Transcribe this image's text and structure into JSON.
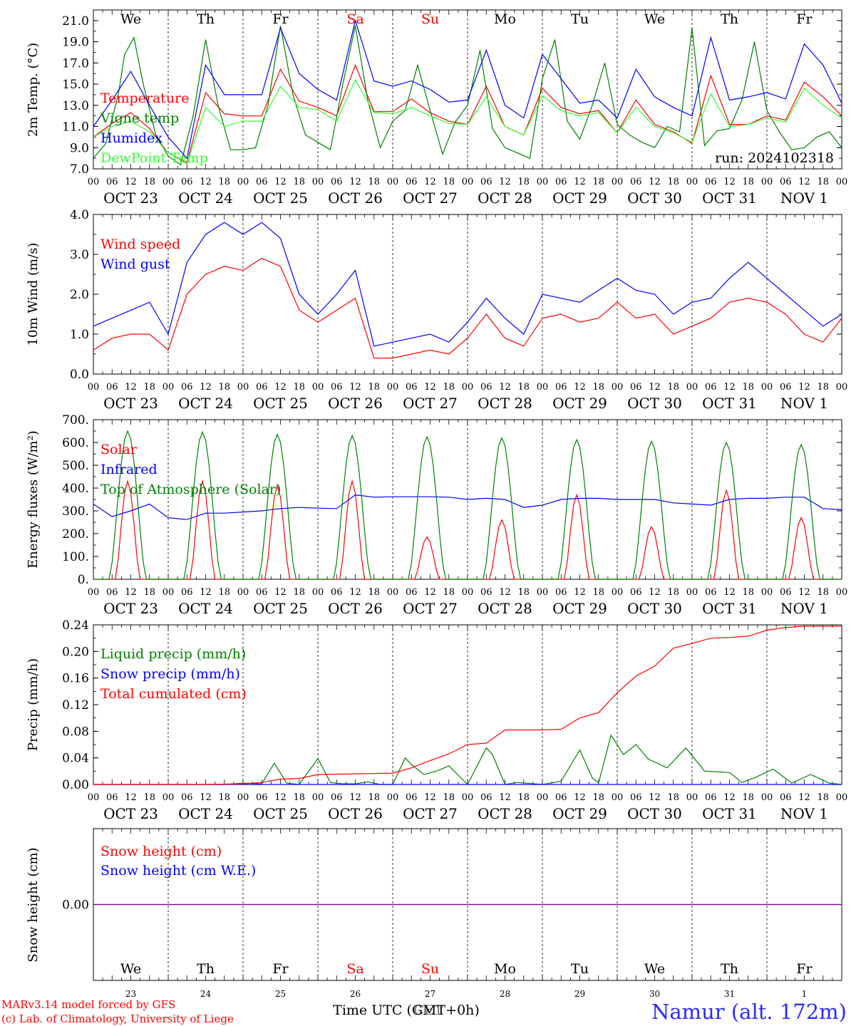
{
  "chart_data": [
    {
      "type": "line",
      "ylabel": "2m Temp. (°C)",
      "ylim": [
        7,
        22
      ],
      "yticks": [
        "7.0",
        "9.0",
        "11.0",
        "13.0",
        "15.0",
        "17.0",
        "19.0",
        "21.0"
      ],
      "day_labels": [
        "We",
        "Th",
        "Fr",
        "Sa",
        "Su",
        "Mo",
        "Tu",
        "We",
        "Th",
        "Fr"
      ],
      "run_label": "run: 2024102318",
      "series": [
        {
          "name": "Temperature",
          "color": "#ff0000",
          "x": [
            0,
            6,
            12,
            18,
            24,
            30,
            36,
            42,
            48,
            54,
            60,
            66,
            72,
            78,
            84,
            90,
            96,
            102,
            108,
            114,
            120,
            126,
            132,
            138,
            144,
            150,
            156,
            162,
            168,
            174,
            180,
            186,
            192,
            198,
            204,
            210,
            216,
            222,
            228,
            234,
            240
          ],
          "values": [
            10.0,
            11.3,
            12.3,
            10.8,
            8.5,
            7.6,
            14.2,
            12.2,
            12.0,
            12.0,
            16.4,
            13.4,
            12.8,
            12.0,
            16.8,
            12.4,
            12.4,
            13.6,
            12.3,
            11.5,
            11.2,
            14.8,
            11.0,
            10.2,
            14.6,
            12.8,
            12.2,
            12.5,
            10.4,
            13.5,
            11.2,
            10.5,
            9.4,
            15.8,
            11.2,
            11.2,
            12.0,
            11.6,
            15.2,
            13.8,
            12.0
          ]
        },
        {
          "name": "Vigne temp",
          "color": "#008000",
          "x": [
            0,
            4,
            8,
            10,
            13,
            16,
            20,
            24,
            28,
            32,
            36,
            40,
            44,
            48,
            52,
            56,
            60,
            64,
            68,
            72,
            76,
            80,
            84,
            88,
            92,
            96,
            100,
            104,
            108,
            112,
            116,
            120,
            124,
            128,
            132,
            136,
            140,
            144,
            148,
            152,
            156,
            160,
            164,
            168,
            172,
            176,
            180,
            184,
            188,
            192,
            196,
            200,
            204,
            208,
            212,
            216,
            220,
            224,
            228,
            232,
            236,
            240
          ],
          "values": [
            8.0,
            9.4,
            14.0,
            17.8,
            19.4,
            15.0,
            10.2,
            8.2,
            7.4,
            12.0,
            19.2,
            13.0,
            8.8,
            8.8,
            9.0,
            13.0,
            20.5,
            14.0,
            10.2,
            9.5,
            8.8,
            15.0,
            20.5,
            13.5,
            9.0,
            11.5,
            12.5,
            16.8,
            12.5,
            8.4,
            11.4,
            13.0,
            18.2,
            10.8,
            9.0,
            8.5,
            8.0,
            15.5,
            19.2,
            11.5,
            9.8,
            13.0,
            17.0,
            11.2,
            10.2,
            9.5,
            9.0,
            11.0,
            10.5,
            20.3,
            9.2,
            10.6,
            10.8,
            13.5,
            19.0,
            12.5,
            10.5,
            8.8,
            9.0,
            10.0,
            10.5,
            9.0
          ]
        },
        {
          "name": "Humidex",
          "color": "#0000ff",
          "x": [
            0,
            6,
            12,
            18,
            24,
            30,
            36,
            42,
            48,
            54,
            60,
            66,
            72,
            78,
            84,
            90,
            96,
            102,
            108,
            114,
            120,
            126,
            132,
            138,
            144,
            150,
            156,
            162,
            168,
            174,
            180,
            186,
            192,
            198,
            204,
            210,
            216,
            222,
            228,
            234,
            240
          ],
          "values": [
            11.0,
            13.5,
            16.2,
            13.0,
            10.0,
            8.0,
            16.8,
            14.0,
            14.0,
            14.0,
            20.3,
            16.0,
            14.5,
            13.5,
            21.0,
            15.3,
            14.8,
            15.3,
            14.5,
            13.3,
            13.5,
            18.2,
            13.0,
            11.8,
            17.8,
            15.5,
            13.2,
            13.5,
            11.8,
            16.4,
            13.8,
            12.8,
            12.0,
            19.4,
            13.5,
            13.8,
            14.2,
            13.6,
            18.8,
            16.8,
            13.2
          ]
        },
        {
          "name": "DewPoint Temp",
          "color": "#33ff33",
          "x": [
            0,
            6,
            12,
            18,
            24,
            30,
            36,
            42,
            48,
            54,
            60,
            66,
            72,
            78,
            84,
            90,
            96,
            102,
            108,
            114,
            120,
            126,
            132,
            138,
            144,
            150,
            156,
            162,
            168,
            174,
            180,
            186,
            192,
            198,
            204,
            210,
            216,
            222,
            228,
            234,
            240
          ],
          "values": [
            10.0,
            11.0,
            11.5,
            10.5,
            8.5,
            7.5,
            12.8,
            11.0,
            11.5,
            11.5,
            14.8,
            12.8,
            12.6,
            11.5,
            15.4,
            12.3,
            12.2,
            12.8,
            12.0,
            11.3,
            11.2,
            13.8,
            11.0,
            10.2,
            13.9,
            12.5,
            12.0,
            12.3,
            10.4,
            12.8,
            11.0,
            10.4,
            9.5,
            14.1,
            11.0,
            11.2,
            11.8,
            11.4,
            14.6,
            13.0,
            11.8
          ]
        }
      ]
    },
    {
      "type": "line",
      "ylabel": "10m Wind (m/s)",
      "ylim": [
        0,
        4
      ],
      "yticks": [
        "0.0",
        "1.0",
        "2.0",
        "3.0",
        "4.0"
      ],
      "series": [
        {
          "name": "Wind speed",
          "color": "#ff0000",
          "x": [
            0,
            6,
            12,
            18,
            24,
            30,
            36,
            42,
            48,
            54,
            60,
            66,
            72,
            78,
            84,
            90,
            96,
            102,
            108,
            114,
            120,
            126,
            132,
            138,
            144,
            150,
            156,
            162,
            168,
            174,
            180,
            186,
            192,
            198,
            204,
            210,
            216,
            222,
            228,
            234,
            240
          ],
          "values": [
            0.6,
            0.9,
            1.0,
            1.0,
            0.6,
            2.0,
            2.5,
            2.7,
            2.6,
            2.9,
            2.7,
            1.6,
            1.3,
            1.6,
            1.9,
            0.4,
            0.4,
            0.5,
            0.6,
            0.5,
            0.9,
            1.5,
            0.9,
            0.7,
            1.4,
            1.5,
            1.3,
            1.4,
            1.8,
            1.4,
            1.5,
            1.0,
            1.2,
            1.4,
            1.8,
            1.9,
            1.8,
            1.5,
            1.0,
            0.8,
            1.4
          ]
        },
        {
          "name": "Wind gust",
          "color": "#0000ff",
          "x": [
            0,
            6,
            12,
            18,
            24,
            30,
            36,
            42,
            48,
            54,
            60,
            66,
            72,
            78,
            84,
            90,
            96,
            102,
            108,
            114,
            120,
            126,
            132,
            138,
            144,
            150,
            156,
            162,
            168,
            174,
            180,
            186,
            192,
            198,
            204,
            210,
            216,
            222,
            228,
            234,
            240
          ],
          "values": [
            1.2,
            1.4,
            1.6,
            1.8,
            1.0,
            2.8,
            3.5,
            3.8,
            3.5,
            3.8,
            3.4,
            2.0,
            1.5,
            2.0,
            2.6,
            0.7,
            0.8,
            0.9,
            1.0,
            0.8,
            1.3,
            1.9,
            1.4,
            1.0,
            2.0,
            1.9,
            1.8,
            2.1,
            2.4,
            2.1,
            2.0,
            1.5,
            1.8,
            1.9,
            2.4,
            2.8,
            2.4,
            2.0,
            1.6,
            1.2,
            1.5
          ]
        }
      ]
    },
    {
      "type": "line",
      "ylabel": "Energy fluxes (W/m²)",
      "ylim": [
        0,
        700
      ],
      "yticks": [
        "0.",
        "100.",
        "200.",
        "300.",
        "400.",
        "500.",
        "600.",
        "700."
      ],
      "series": [
        {
          "name": "Solar",
          "color": "#ff0000",
          "daily_peaks": [
            430,
            430,
            410,
            430,
            185,
            260,
            370,
            230,
            390,
            270
          ]
        },
        {
          "name": "Infrared",
          "color": "#0000ff",
          "x": [
            0,
            6,
            12,
            18,
            24,
            30,
            36,
            42,
            48,
            54,
            60,
            66,
            72,
            78,
            84,
            90,
            96,
            102,
            108,
            114,
            120,
            126,
            132,
            138,
            144,
            150,
            156,
            162,
            168,
            174,
            180,
            186,
            192,
            198,
            204,
            210,
            216,
            222,
            228,
            234,
            240
          ],
          "values": [
            330,
            275,
            300,
            330,
            270,
            262,
            290,
            290,
            295,
            300,
            310,
            315,
            312,
            310,
            370,
            360,
            362,
            362,
            362,
            360,
            350,
            355,
            350,
            315,
            325,
            350,
            355,
            355,
            350,
            350,
            350,
            335,
            330,
            325,
            350,
            355,
            355,
            360,
            360,
            310,
            305
          ]
        },
        {
          "name": "Top of Atmosphere (Solar)",
          "color": "#008000",
          "daily_peaks": [
            650,
            645,
            635,
            630,
            625,
            620,
            612,
            605,
            600,
            590
          ]
        }
      ]
    },
    {
      "type": "line",
      "ylabel": "Precip (mm/h)",
      "ylim": [
        0,
        0.24
      ],
      "yticks": [
        "0.00",
        "0.04",
        "0.08",
        "0.12",
        "0.16",
        "0.20",
        "0.24"
      ],
      "series": [
        {
          "name": "Liquid precip (mm/h)",
          "color": "#008000",
          "x": [
            0,
            24,
            36,
            42,
            48,
            54,
            58,
            62,
            66,
            72,
            76,
            80,
            84,
            88,
            92,
            96,
            100,
            102,
            106,
            110,
            114,
            120,
            126,
            128,
            132,
            136,
            144,
            150,
            156,
            160,
            162,
            166,
            170,
            174,
            178,
            184,
            190,
            196,
            204,
            208,
            212,
            218,
            224,
            230,
            236,
            240
          ],
          "values": [
            0,
            0,
            0,
            0,
            0.002,
            0.001,
            0.032,
            0.002,
            0,
            0.039,
            0.003,
            0.001,
            0.001,
            0.004,
            0,
            0,
            0.04,
            0.03,
            0.015,
            0.02,
            0.028,
            0,
            0.055,
            0.045,
            0,
            0.003,
            0,
            0.005,
            0.052,
            0.01,
            0.002,
            0.074,
            0.045,
            0.06,
            0.038,
            0.025,
            0.055,
            0.02,
            0.018,
            0.003,
            0.01,
            0.023,
            0.002,
            0.015,
            0.002,
            0
          ]
        },
        {
          "name": "Snow precip (mm/h)",
          "color": "#0000ff",
          "values": [
            0
          ]
        },
        {
          "name": "Total cumulated (cm)",
          "color": "#ff0000",
          "x": [
            0,
            24,
            36,
            48,
            54,
            60,
            66,
            72,
            84,
            96,
            102,
            108,
            114,
            120,
            126,
            132,
            138,
            144,
            150,
            156,
            162,
            168,
            174,
            180,
            186,
            192,
            198,
            204,
            210,
            216,
            222,
            228,
            234,
            240
          ],
          "values": [
            0,
            0,
            0,
            0.001,
            0.003,
            0.008,
            0.009,
            0.015,
            0.016,
            0.017,
            0.025,
            0.036,
            0.046,
            0.06,
            0.062,
            0.082,
            0.082,
            0.082,
            0.083,
            0.1,
            0.108,
            0.138,
            0.163,
            0.178,
            0.205,
            0.212,
            0.22,
            0.221,
            0.223,
            0.232,
            0.236,
            0.238,
            0.238,
            0.238
          ]
        }
      ]
    },
    {
      "type": "line",
      "ylabel": "Snow height (cm)",
      "yticks": [
        "0.00"
      ],
      "series": [
        {
          "name": "Snow height (cm)",
          "color": "#ff0000",
          "values": [
            0
          ]
        },
        {
          "name": "Snow height (cm W.E.)",
          "color": "#0000ff",
          "values": [
            0
          ]
        }
      ]
    }
  ],
  "x_axis": {
    "hour_labels": [
      "00",
      "06",
      "12",
      "18"
    ],
    "final_label": "00",
    "date_labels": [
      "OCT 23",
      "OCT 24",
      "OCT 25",
      "OCT 26",
      "OCT 27",
      "OCT 28",
      "OCT 29",
      "OCT 30",
      "OCT 31",
      "NOV  1"
    ],
    "bottom_day_labels": [
      "We",
      "Th",
      "Fr",
      "Sa",
      "Su",
      "Mo",
      "Tu",
      "We",
      "Th",
      "Fr"
    ],
    "bottom_day_numbers": [
      "23",
      "24",
      "25",
      "26",
      "27",
      "28",
      "29",
      "30",
      "31",
      "1"
    ],
    "weekend_color": "#ff0000"
  },
  "footer": {
    "model_line": "MARv3.14 model forced by GFS",
    "copyright_line": "(c) Lab. of Climatology, University of Liege",
    "time_label": "Time UTC (GMT+0h)",
    "time_label_overlay": "CET",
    "station": "Namur (alt. 172m)"
  }
}
